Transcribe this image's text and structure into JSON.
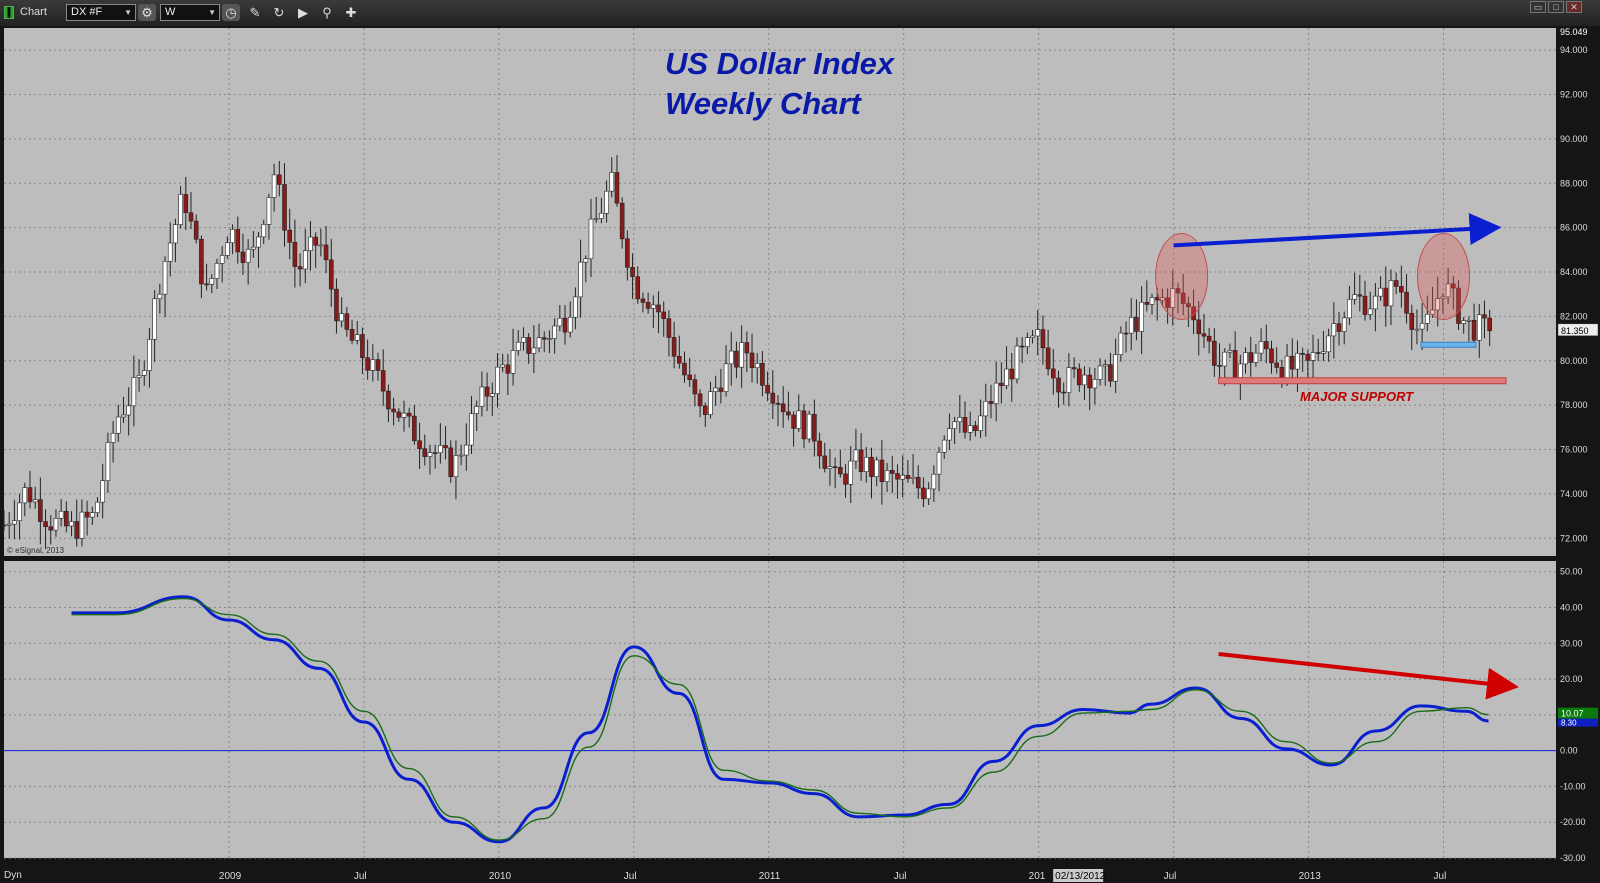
{
  "toolbar": {
    "window_title": "Chart",
    "symbol": "DX #F",
    "interval": "W",
    "icons": [
      "link-icon",
      "gear-icon",
      "clock-icon",
      "pencil-icon",
      "cycle-icon",
      "play-icon",
      "magnifier-icon",
      "tools-icon"
    ],
    "window_buttons": [
      "minimize-icon",
      "restore-icon",
      "close-icon"
    ]
  },
  "footer": {
    "mode_label": "Dyn"
  },
  "colors": {
    "plot_bg": "#bdbdbd",
    "up_candle": "#ffffff",
    "down_candle": "#8b1a1a",
    "blue_line": "#0a1fd0",
    "green_line": "#1a6b1a",
    "annotation_blue": "#0a1fd0",
    "annotation_red": "#d00000",
    "support_band": "#e07a7a",
    "support_line_light": "#6ab4f0"
  },
  "chart_data": [
    {
      "type": "candlestick",
      "title": "US Dollar Index",
      "subtitle": "Weekly Chart",
      "watermark": "© eSignal, 2013",
      "ylim": [
        71.2,
        95.0
      ],
      "y_ticks": [
        72,
        74,
        76,
        78,
        80,
        82,
        84,
        86,
        88,
        90,
        92,
        94
      ],
      "y_tick_labels": [
        "72.000",
        "74.000",
        "76.000",
        "78.000",
        "80.000",
        "82.000",
        "84.000",
        "86.000",
        "88.000",
        "90.000",
        "92.000",
        "94.000"
      ],
      "y_top_label": "95.049",
      "last_price_label": "81.350",
      "last_price": 81.35,
      "grid": true,
      "price_path": [
        [
          "2008-03",
          72.6
        ],
        [
          "2008-04",
          74.2
        ],
        [
          "2008-05",
          72.8
        ],
        [
          "2008-06",
          72.4
        ],
        [
          "2008-07",
          73.0
        ],
        [
          "2008-08",
          77.4
        ],
        [
          "2008-09",
          79.0
        ],
        [
          "2008-10",
          84.0
        ],
        [
          "2008-11",
          87.5
        ],
        [
          "2008-12",
          83.0
        ],
        [
          "2009-01",
          86.0
        ],
        [
          "2009-02",
          84.5
        ],
        [
          "2009-03",
          88.5
        ],
        [
          "2009-04",
          84.0
        ],
        [
          "2009-05",
          85.5
        ],
        [
          "2009-06",
          81.5
        ],
        [
          "2009-07",
          80.2
        ],
        [
          "2009-08",
          78.5
        ],
        [
          "2009-09",
          77.0
        ],
        [
          "2009-10",
          76.0
        ],
        [
          "2009-11",
          75.2
        ],
        [
          "2009-12",
          77.8
        ],
        [
          "2010-01",
          79.5
        ],
        [
          "2010-02",
          80.5
        ],
        [
          "2010-03",
          81.0
        ],
        [
          "2010-04",
          82.0
        ],
        [
          "2010-05",
          85.5
        ],
        [
          "2010-06",
          88.0
        ],
        [
          "2010-07",
          83.5
        ],
        [
          "2010-08",
          82.5
        ],
        [
          "2010-09",
          80.0
        ],
        [
          "2010-10",
          77.5
        ],
        [
          "2010-11",
          79.5
        ],
        [
          "2010-12",
          80.5
        ],
        [
          "2011-01",
          79.0
        ],
        [
          "2011-02",
          77.5
        ],
        [
          "2011-03",
          76.8
        ],
        [
          "2011-04",
          74.5
        ],
        [
          "2011-05",
          75.5
        ],
        [
          "2011-06",
          74.8
        ],
        [
          "2011-07",
          74.5
        ],
        [
          "2011-08",
          74.2
        ],
        [
          "2011-09",
          77.5
        ],
        [
          "2011-10",
          76.5
        ],
        [
          "2011-11",
          78.5
        ],
        [
          "2011-12",
          80.0
        ],
        [
          "2012-01",
          81.0
        ],
        [
          "2012-02",
          79.0
        ],
        [
          "2012-03",
          79.5
        ],
        [
          "2012-04",
          79.2
        ],
        [
          "2012-05",
          81.5
        ],
        [
          "2012-06",
          82.5
        ],
        [
          "2012-07",
          83.0
        ],
        [
          "2012-08",
          82.0
        ],
        [
          "2012-09",
          79.8
        ],
        [
          "2012-10",
          79.9
        ],
        [
          "2012-11",
          80.6
        ],
        [
          "2012-12",
          79.6
        ],
        [
          "2013-01",
          79.8
        ],
        [
          "2013-02",
          81.5
        ],
        [
          "2013-03",
          82.8
        ],
        [
          "2013-04",
          82.6
        ],
        [
          "2013-05",
          83.5
        ],
        [
          "2013-06",
          81.0
        ],
        [
          "2013-07",
          83.5
        ],
        [
          "2013-08",
          81.6
        ],
        [
          "2013-09",
          81.35
        ]
      ],
      "annotations": {
        "support_label": "MAJOR SUPPORT",
        "support_level": 79.1,
        "secondary_support_level": 80.7,
        "highlighted_peaks": [
          "2012-07",
          "2013-07"
        ],
        "arrow_direction": "up",
        "arrow_from": [
          "2012-07",
          85.2
        ],
        "arrow_to": [
          "2013-09",
          86.0
        ]
      }
    },
    {
      "type": "line",
      "ylim": [
        -30,
        53
      ],
      "y_ticks": [
        -30,
        -20,
        -10,
        0,
        10,
        20,
        30,
        40,
        50
      ],
      "y_tick_labels": [
        "-30.00",
        "-20.00",
        "-10.00",
        "0.00",
        "10.00",
        "20.00",
        "30.00",
        "40.00",
        "50.00"
      ],
      "last_value_labels": [
        "10.07",
        "8.30"
      ],
      "zero_line": true,
      "series": [
        {
          "points": [
            [
              "2008-06",
              38.5
            ],
            [
              "2008-08",
              38.5
            ],
            [
              "2008-11",
              43.0
            ],
            [
              "2009-01",
              36.5
            ],
            [
              "2009-03",
              31.0
            ],
            [
              "2009-05",
              23.0
            ],
            [
              "2009-07",
              8.0
            ],
            [
              "2009-09",
              -8.0
            ],
            [
              "2009-11",
              -20.0
            ],
            [
              "2010-01",
              -25.5
            ],
            [
              "2010-03",
              -16.0
            ],
            [
              "2010-05",
              5.0
            ],
            [
              "2010-07",
              29.0
            ],
            [
              "2010-09",
              16.0
            ],
            [
              "2010-11",
              -8.0
            ],
            [
              "2011-01",
              -9.0
            ],
            [
              "2011-03",
              -12.0
            ],
            [
              "2011-05",
              -18.5
            ],
            [
              "2011-07",
              -18.0
            ],
            [
              "2011-09",
              -15.0
            ],
            [
              "2011-11",
              -3.0
            ],
            [
              "2012-01",
              7.0
            ],
            [
              "2012-03",
              11.5
            ],
            [
              "2012-05",
              10.5
            ],
            [
              "2012-06",
              13.0
            ],
            [
              "2012-08",
              17.5
            ],
            [
              "2012-10",
              9.0
            ],
            [
              "2012-12",
              0.5
            ],
            [
              "2013-02",
              -4.0
            ],
            [
              "2013-04",
              5.5
            ],
            [
              "2013-06",
              12.5
            ],
            [
              "2013-08",
              11.0
            ],
            [
              "2013-09",
              8.3
            ]
          ]
        },
        {
          "points": [
            [
              "2008-06",
              38.0
            ],
            [
              "2008-08",
              38.0
            ],
            [
              "2008-11",
              42.5
            ],
            [
              "2009-01",
              38.0
            ],
            [
              "2009-03",
              32.5
            ],
            [
              "2009-05",
              25.0
            ],
            [
              "2009-07",
              11.0
            ],
            [
              "2009-09",
              -5.0
            ],
            [
              "2009-11",
              -18.5
            ],
            [
              "2010-01",
              -25.0
            ],
            [
              "2010-03",
              -19.0
            ],
            [
              "2010-05",
              1.0
            ],
            [
              "2010-07",
              26.5
            ],
            [
              "2010-09",
              18.5
            ],
            [
              "2010-11",
              -5.5
            ],
            [
              "2011-01",
              -8.5
            ],
            [
              "2011-03",
              -11.0
            ],
            [
              "2011-05",
              -17.5
            ],
            [
              "2011-07",
              -18.5
            ],
            [
              "2011-09",
              -16.0
            ],
            [
              "2011-11",
              -6.0
            ],
            [
              "2012-01",
              4.0
            ],
            [
              "2012-03",
              10.5
            ],
            [
              "2012-05",
              11.0
            ],
            [
              "2012-06",
              11.5
            ],
            [
              "2012-08",
              17.0
            ],
            [
              "2012-10",
              11.0
            ],
            [
              "2012-12",
              2.5
            ],
            [
              "2013-02",
              -3.5
            ],
            [
              "2013-04",
              2.5
            ],
            [
              "2013-06",
              11.0
            ],
            [
              "2013-08",
              12.0
            ],
            [
              "2013-09",
              10.07
            ]
          ]
        }
      ],
      "annotations": {
        "arrow_direction": "down",
        "arrow_from": [
          "2012-09",
          27.0
        ],
        "arrow_to": [
          "2013-10",
          18.0
        ]
      }
    }
  ],
  "x_axis": {
    "tick_labels": [
      {
        "label": "2009",
        "date": "2009-01"
      },
      {
        "label": "Jul",
        "date": "2009-07"
      },
      {
        "label": "2010",
        "date": "2010-01"
      },
      {
        "label": "Jul",
        "date": "2010-07"
      },
      {
        "label": "2011",
        "date": "2011-01"
      },
      {
        "label": "Jul",
        "date": "2011-07"
      },
      {
        "label": "201",
        "date": "2012-01"
      },
      {
        "label": "Jul",
        "date": "2012-07"
      },
      {
        "label": "2013",
        "date": "2013-01"
      },
      {
        "label": "Jul",
        "date": "2013-07"
      }
    ],
    "cursor_date_label": "02/13/2012",
    "cursor_date": "2012-02"
  }
}
